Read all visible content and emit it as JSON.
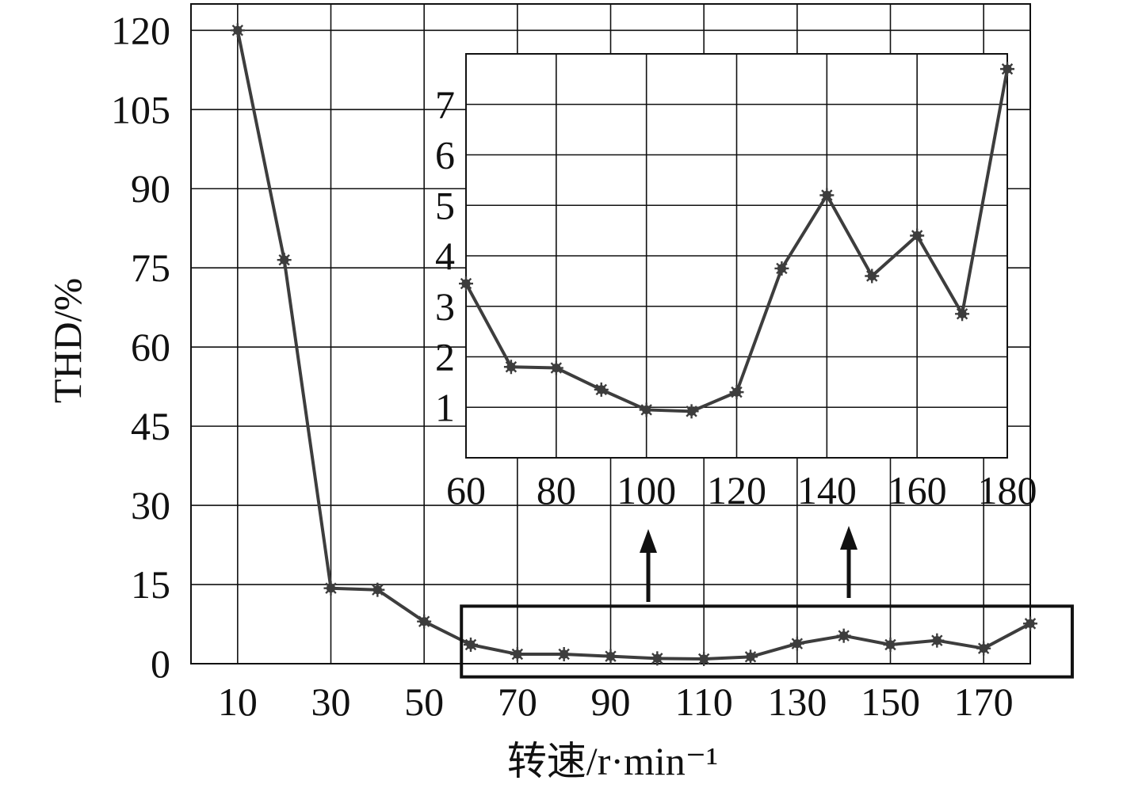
{
  "chart_data": [
    {
      "type": "line",
      "title": "",
      "xlabel": "转速/r·min⁻¹",
      "ylabel": "THD/%",
      "x": [
        10,
        20,
        30,
        40,
        50,
        60,
        70,
        80,
        90,
        100,
        110,
        120,
        130,
        140,
        150,
        160,
        170,
        180
      ],
      "series": [
        {
          "name": "",
          "values": [
            120,
            76.5,
            14.3,
            14.0,
            8.0,
            3.6,
            1.8,
            1.8,
            1.4,
            1.0,
            0.9,
            1.3,
            3.8,
            5.3,
            3.6,
            4.4,
            2.9,
            7.6
          ]
        }
      ],
      "xlim": [
        0,
        180
      ],
      "ylim": [
        0,
        125
      ],
      "xticks": [
        "10",
        "30",
        "50",
        "70",
        "90",
        "110",
        "130",
        "150",
        "170"
      ],
      "yticks": [
        "0",
        "15",
        "30",
        "45",
        "60",
        "75",
        "90",
        "105",
        "120"
      ],
      "grid": true,
      "line_color": "#3d3d3d",
      "marker": "asterisk",
      "highlight_box_x_range": [
        58,
        189
      ],
      "highlight_box_y_range": [
        -2.5,
        10.9
      ]
    },
    {
      "type": "line",
      "title": "",
      "xlabel": "",
      "ylabel": "",
      "x": [
        60,
        70,
        80,
        90,
        100,
        110,
        120,
        130,
        140,
        150,
        160,
        170,
        180
      ],
      "series": [
        {
          "name": "",
          "values": [
            3.45,
            1.8,
            1.78,
            1.35,
            0.95,
            0.92,
            1.3,
            3.75,
            5.2,
            3.6,
            4.4,
            2.85,
            7.7
          ]
        }
      ],
      "xlim": [
        60,
        180
      ],
      "ylim": [
        0,
        8
      ],
      "xticks": [
        "60",
        "80",
        "100",
        "120",
        "140",
        "160",
        "180"
      ],
      "yticks": [
        "1",
        "2",
        "3",
        "4",
        "5",
        "6",
        "7"
      ],
      "grid": true,
      "line_color": "#3d3d3d",
      "marker": "asterisk"
    }
  ]
}
